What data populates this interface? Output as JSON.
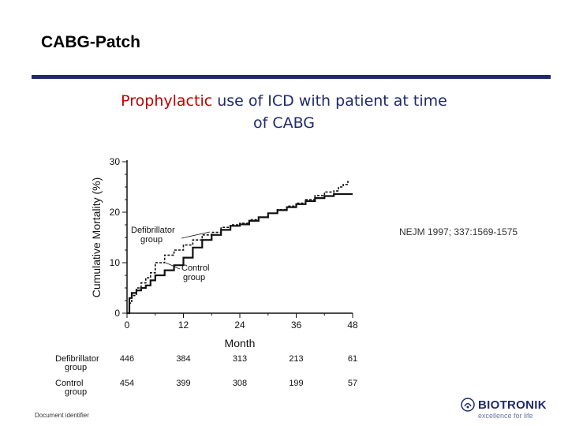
{
  "slide": {
    "title": "CABG-Patch",
    "subtitle_accent": "Prophylactic",
    "subtitle_rest_line1": " use of ICD with patient at time",
    "subtitle_line2": "of CABG",
    "citation": "NEJM 1997; 337:1569-1575",
    "document_identifier": "Document identifier"
  },
  "branding": {
    "name": "BIOTRONIK",
    "tagline": "excellence for life",
    "logo_icon": "biotronik-logo-icon",
    "color": "#1f2a6b"
  },
  "colors": {
    "accent": "#c00000",
    "brand": "#1f2a6b"
  },
  "chart_data": {
    "type": "line",
    "title": "",
    "xlabel": "Month",
    "ylabel": "Cumulative Mortality (%)",
    "xlim": [
      0,
      48
    ],
    "ylim": [
      0,
      30
    ],
    "x_ticks": [
      0,
      12,
      24,
      36,
      48
    ],
    "y_ticks": [
      0,
      10,
      20,
      30
    ],
    "grid": false,
    "series": [
      {
        "name": "Defibrillator group",
        "label_line1": "Defibrillator",
        "label_line2": "group",
        "style": "dashed",
        "x": [
          0,
          0.5,
          1,
          2,
          3,
          4,
          5,
          6,
          8,
          10,
          12,
          14,
          16,
          18,
          20,
          22,
          24,
          26,
          28,
          30,
          32,
          34,
          36,
          38,
          40,
          42,
          44,
          45,
          46,
          47
        ],
        "y": [
          0,
          2,
          3.5,
          5,
          6,
          7,
          8,
          10,
          11.5,
          12.5,
          13.5,
          14.5,
          15.5,
          16,
          17,
          17.5,
          17.8,
          18.5,
          19,
          19.8,
          20.5,
          21.2,
          21.8,
          22.5,
          23.3,
          24,
          24.2,
          25,
          25.5,
          26.2
        ]
      },
      {
        "name": "Control group",
        "label_line1": "Control",
        "label_line2": "group",
        "style": "solid",
        "x": [
          0,
          0.5,
          1,
          2,
          3,
          4,
          5,
          6,
          8,
          10,
          12,
          14,
          16,
          18,
          20,
          22,
          24,
          26,
          28,
          30,
          32,
          34,
          36,
          38,
          40,
          42,
          44,
          48
        ],
        "y": [
          0,
          3,
          4,
          4.5,
          5,
          5.5,
          6.5,
          7.5,
          8.5,
          9.5,
          11,
          13,
          14.5,
          15.5,
          16.5,
          17.3,
          17.6,
          18.3,
          19,
          19.8,
          20.4,
          21,
          21.6,
          22.2,
          22.8,
          23.2,
          23.6,
          23.6
        ]
      }
    ],
    "at_risk": {
      "months": [
        0,
        12,
        24,
        36,
        48
      ],
      "rows": [
        {
          "label_line1": "Defibrillator",
          "label_line2": "group",
          "values": [
            446,
            384,
            313,
            213,
            61
          ]
        },
        {
          "label_line1": "Control",
          "label_line2": "group",
          "values": [
            454,
            399,
            308,
            199,
            57
          ]
        }
      ]
    }
  }
}
